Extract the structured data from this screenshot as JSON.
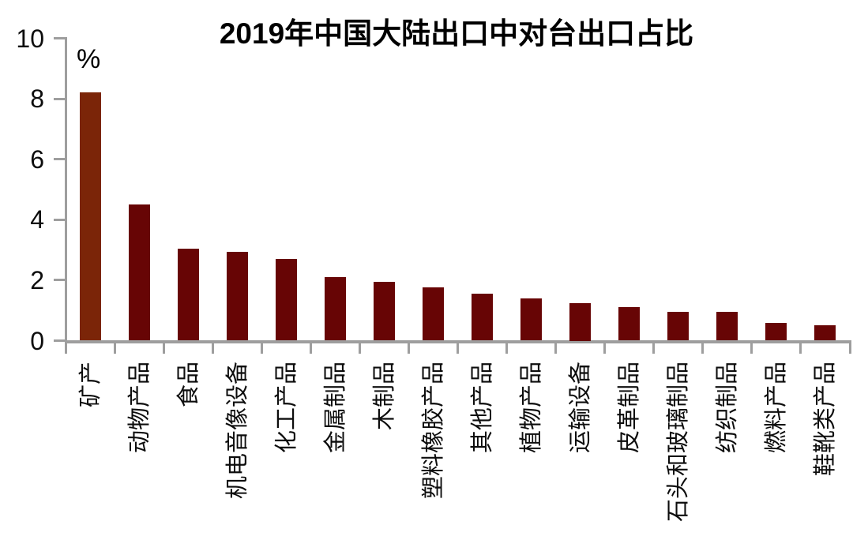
{
  "chart_data": {
    "type": "bar",
    "title": "2019年中国大陆出口中对台出口占比",
    "unit_label": "%",
    "categories": [
      "矿产",
      "动物产品",
      "食品",
      "机电音像设备",
      "化工产品",
      "金属制品",
      "木制品",
      "塑料橡胶产品",
      "其他产品",
      "植物产品",
      "运输设备",
      "皮革制品",
      "石头和玻璃制品",
      "纺织制品",
      "燃料产品",
      "鞋靴类产品"
    ],
    "values": [
      8.2,
      4.5,
      3.05,
      2.95,
      2.7,
      2.1,
      1.95,
      1.75,
      1.55,
      1.4,
      1.25,
      1.1,
      0.95,
      0.95,
      0.6,
      0.5
    ],
    "ylim": [
      0,
      10
    ],
    "yticks": [
      0,
      2,
      4,
      6,
      8,
      10
    ],
    "grid": false,
    "legend": "none",
    "highlight_index": 0,
    "colors": {
      "highlight_bar": "#7B2508",
      "bar": "#670505",
      "axis": "#9E9E9E",
      "text": "#000000"
    }
  }
}
